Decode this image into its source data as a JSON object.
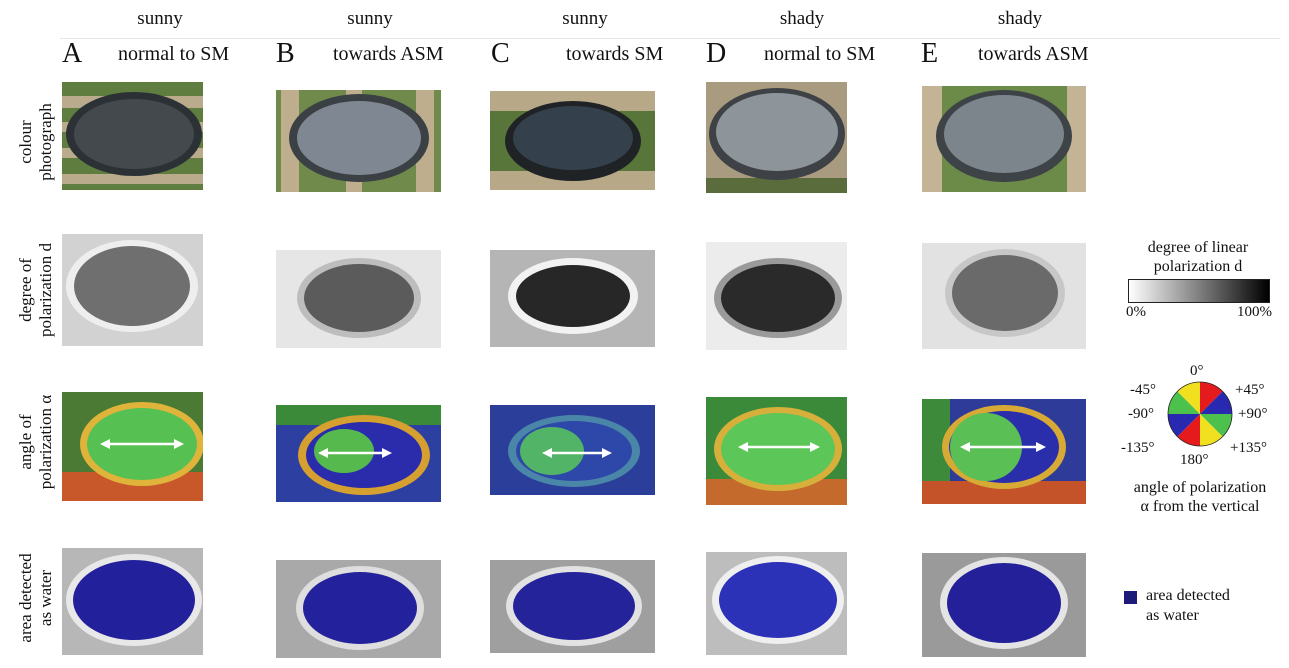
{
  "columns": [
    {
      "condition": "sunny",
      "letter": "A",
      "direction": "normal to SM"
    },
    {
      "condition": "sunny",
      "letter": "B",
      "direction": "towards ASM"
    },
    {
      "condition": "sunny",
      "letter": "C",
      "direction": "towards SM"
    },
    {
      "condition": "shady",
      "letter": "D",
      "direction": "normal to SM"
    },
    {
      "condition": "shady",
      "letter": "E",
      "direction": "towards ASM"
    }
  ],
  "rows": [
    {
      "label_lines": [
        "colour",
        "photograph"
      ]
    },
    {
      "label_lines": [
        "degree of",
        "polarization d"
      ]
    },
    {
      "label_lines": [
        "angle of",
        "polarization α"
      ]
    },
    {
      "label_lines": [
        "area detected",
        "as water"
      ]
    }
  ],
  "legend_dop": {
    "title_lines": [
      "degree of linear",
      "polarization d"
    ],
    "min_label": "0%",
    "max_label": "100%"
  },
  "legend_aop": {
    "labels": {
      "top": "0°",
      "top_left": "-45°",
      "top_right": "+45°",
      "left": "-90°",
      "right": "+90°",
      "bottom_left": "-135°",
      "bottom_right": "+135°",
      "bottom": "180°"
    },
    "caption_lines": [
      "angle of polarization",
      "α from the vertical"
    ],
    "colors": {
      "red": "#e41a1c",
      "yellow": "#f0e020",
      "green": "#4cc24c",
      "blue": "#2828b0"
    }
  },
  "legend_water": {
    "label_lines": [
      "area detected",
      "as water"
    ],
    "color": "#1e1a7a"
  }
}
